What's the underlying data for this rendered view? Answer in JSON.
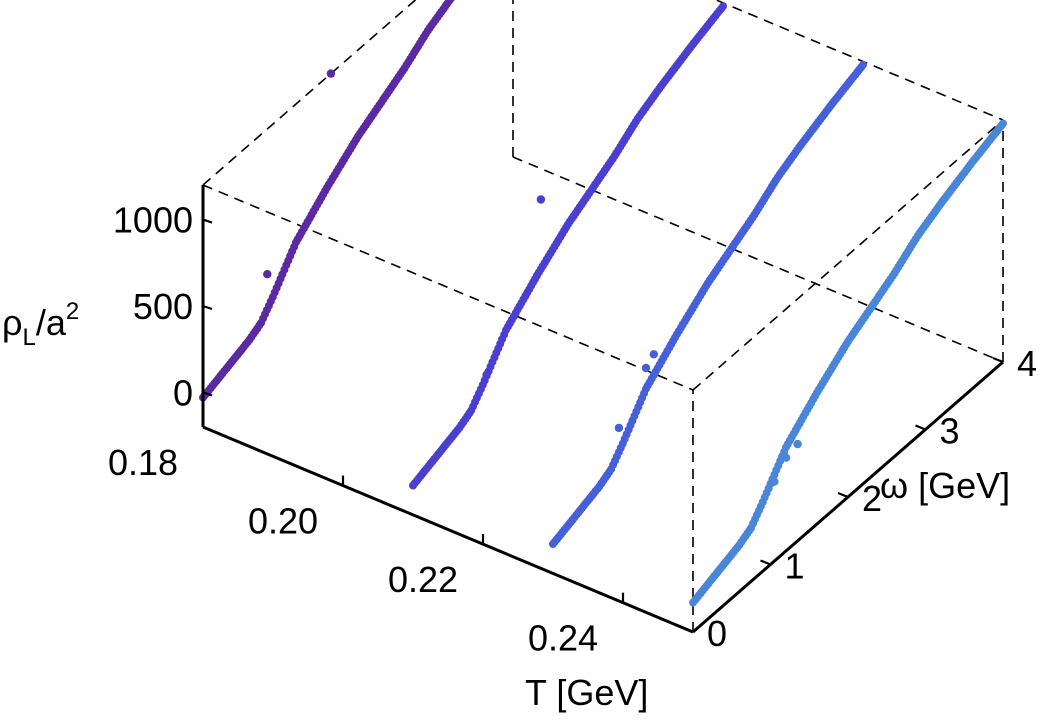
{
  "chart_data": {
    "type": "scatter",
    "subtype": "3d-scatter",
    "xlabel": "T [GeV]",
    "ylabel": "ω [GeV]",
    "zlabel_base": "ρ",
    "zlabel_sub": "L",
    "zlabel_mid": "/a",
    "zlabel_sup": "2",
    "xlim": [
      0.18,
      0.25
    ],
    "ylim": [
      0,
      4
    ],
    "zlim": [
      -200,
      1200
    ],
    "x_ticks": [
      "0.18",
      "0.20",
      "0.22",
      "0.24"
    ],
    "x_tick_values": [
      0.18,
      0.2,
      0.22,
      0.24
    ],
    "y_ticks": [
      "0",
      "1",
      "2",
      "3",
      "4"
    ],
    "y_tick_values": [
      0,
      1,
      2,
      3,
      4
    ],
    "z_ticks": [
      "0",
      "500",
      "1000"
    ],
    "z_tick_values": [
      0,
      500,
      1000
    ],
    "box_style": "dashed",
    "grid": false,
    "legend": "none",
    "series": [
      {
        "T": 0.18,
        "color": "#5b2aa3",
        "curve": [
          [
            0.0,
            -30
          ],
          [
            0.3,
            20
          ],
          [
            0.6,
            70
          ],
          [
            0.75,
            110
          ],
          [
            0.9,
            200
          ],
          [
            1.2,
            400
          ],
          [
            1.6,
            560
          ],
          [
            2.0,
            700
          ],
          [
            2.3,
            780
          ],
          [
            2.6,
            860
          ],
          [
            2.9,
            960
          ],
          [
            3.2,
            1030
          ],
          [
            3.6,
            1110
          ],
          [
            4.0,
            1180
          ]
        ],
        "outliers": [
          [
            0.83,
            360
          ],
          [
            1.65,
            1200
          ]
        ]
      },
      {
        "T": 0.21,
        "color": "#4b3fcf",
        "curve": [
          [
            0.0,
            -30
          ],
          [
            0.3,
            20
          ],
          [
            0.6,
            70
          ],
          [
            0.75,
            110
          ],
          [
            0.9,
            200
          ],
          [
            1.2,
            400
          ],
          [
            1.6,
            560
          ],
          [
            2.0,
            700
          ],
          [
            2.3,
            780
          ],
          [
            2.6,
            860
          ],
          [
            2.9,
            960
          ],
          [
            3.2,
            1030
          ],
          [
            3.6,
            1110
          ],
          [
            4.0,
            1180
          ]
        ],
        "outliers": [
          [
            0.95,
            240
          ],
          [
            1.65,
            980
          ]
        ]
      },
      {
        "T": 0.23,
        "color": "#4560d8",
        "curve": [
          [
            0.0,
            -30
          ],
          [
            0.3,
            20
          ],
          [
            0.6,
            70
          ],
          [
            0.75,
            110
          ],
          [
            0.9,
            200
          ],
          [
            1.2,
            400
          ],
          [
            1.6,
            560
          ],
          [
            2.0,
            700
          ],
          [
            2.3,
            780
          ],
          [
            2.6,
            860
          ],
          [
            2.9,
            960
          ],
          [
            3.2,
            1030
          ],
          [
            3.6,
            1110
          ],
          [
            4.0,
            1180
          ]
        ],
        "outliers": [
          [
            1.2,
            520
          ],
          [
            1.3,
            560
          ],
          [
            0.85,
            310
          ]
        ]
      },
      {
        "T": 0.25,
        "color": "#4a86d8",
        "curve": [
          [
            0.0,
            -30
          ],
          [
            0.3,
            20
          ],
          [
            0.6,
            70
          ],
          [
            0.75,
            110
          ],
          [
            0.9,
            200
          ],
          [
            1.2,
            400
          ],
          [
            1.6,
            560
          ],
          [
            2.0,
            700
          ],
          [
            2.3,
            780
          ],
          [
            2.6,
            860
          ],
          [
            2.9,
            960
          ],
          [
            3.2,
            1030
          ],
          [
            3.6,
            1110
          ],
          [
            4.0,
            1180
          ]
        ],
        "outliers": [
          [
            1.05,
            260
          ],
          [
            1.2,
            340
          ],
          [
            1.35,
            360
          ]
        ]
      }
    ]
  }
}
